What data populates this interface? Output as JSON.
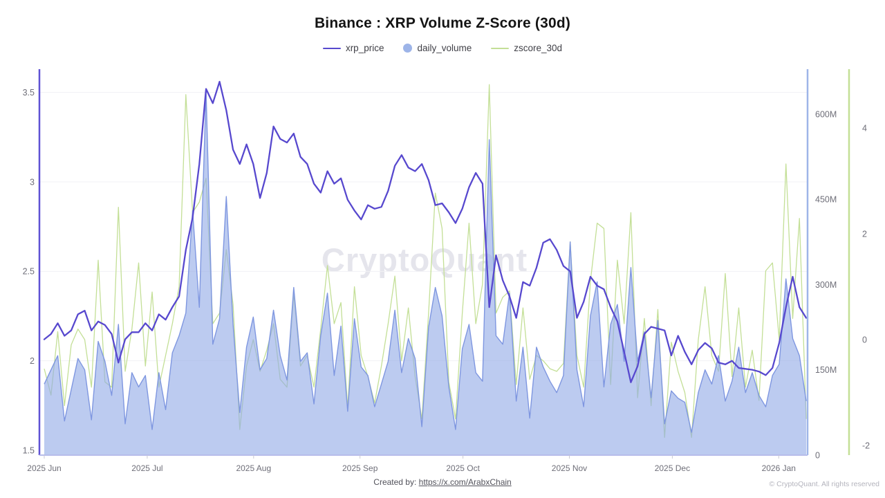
{
  "title": "Binance : XRP Volume Z-Score (30d)",
  "watermark": "CryptoQuant",
  "legend": {
    "items": [
      {
        "label": "xrp_price",
        "color": "#5748CE",
        "swatch": "line"
      },
      {
        "label": "daily_volume",
        "color": "#9DB4E8",
        "swatch": "circle"
      },
      {
        "label": "zscore_30d",
        "color": "#C3DF96",
        "swatch": "line"
      }
    ]
  },
  "footer": {
    "created_by_prefix": "Created by: ",
    "link_text": "https://x.com/ArabxChain",
    "copyright": "© CryptoQuant. All rights reserved"
  },
  "chart_data": {
    "type": "mixed-line-area",
    "title": "Binance : XRP Volume Z-Score (30d)",
    "x_axis": {
      "labels": [
        "2025 Jun",
        "2025 Jul",
        "2025 Aug",
        "2025 Sep",
        "2025 Oct",
        "2025 Nov",
        "2025 Dec",
        "2026 Jan"
      ],
      "month_day_offsets": [
        0,
        30,
        61,
        92,
        122,
        153,
        183,
        214
      ],
      "total_days": 222,
      "range_note": "daily data 2025-06-01 to 2026-01-09"
    },
    "y_axes": {
      "price": {
        "side": "left",
        "axis_color": "#5F51D4",
        "tick_labels": [
          "3.5",
          "3",
          "2.5",
          "2",
          "1.5"
        ],
        "tick_values": [
          3.5,
          3,
          2.5,
          2,
          1.5
        ],
        "min": 1.473,
        "max": 3.63
      },
      "volume": {
        "side": "right",
        "axis_color": "#9EB5E8",
        "tick_labels": [
          "600M",
          "450M",
          "300M",
          "150M",
          "0"
        ],
        "tick_values": [
          600,
          450,
          300,
          150,
          0
        ],
        "min": 0,
        "max": 679,
        "unit": "millions"
      },
      "zscore": {
        "side": "right-outer",
        "axis_color": "#C3DF96",
        "tick_labels": [
          "4",
          "2",
          "0",
          "-2"
        ],
        "tick_values": [
          4,
          2,
          0,
          -2
        ],
        "min": -2.183,
        "max": 5.111
      }
    },
    "grid": {
      "horizontal": true,
      "color": "#f1f1f4"
    },
    "series": [
      {
        "name": "xrp_price",
        "type": "line",
        "axis": "price",
        "color": "#5748CE",
        "width": 2.3,
        "values": [
          2.12,
          2.15,
          2.21,
          2.14,
          2.17,
          2.26,
          2.28,
          2.17,
          2.22,
          2.2,
          2.15,
          1.99,
          2.12,
          2.16,
          2.16,
          2.21,
          2.17,
          2.26,
          2.23,
          2.3,
          2.36,
          2.62,
          2.8,
          3.1,
          3.52,
          3.44,
          3.56,
          3.4,
          3.18,
          3.1,
          3.21,
          3.1,
          2.91,
          3.05,
          3.31,
          3.24,
          3.22,
          3.27,
          3.14,
          3.1,
          2.99,
          2.94,
          3.06,
          2.99,
          3.02,
          2.9,
          2.84,
          2.79,
          2.87,
          2.85,
          2.86,
          2.95,
          3.09,
          3.15,
          3.08,
          3.06,
          3.1,
          3.01,
          2.87,
          2.88,
          2.83,
          2.77,
          2.85,
          2.97,
          3.05,
          2.99,
          2.3,
          2.59,
          2.45,
          2.36,
          2.24,
          2.44,
          2.42,
          2.52,
          2.66,
          2.68,
          2.62,
          2.53,
          2.5,
          2.24,
          2.33,
          2.47,
          2.42,
          2.4,
          2.3,
          2.22,
          2.05,
          1.88,
          1.97,
          2.15,
          2.19,
          2.18,
          2.17,
          2.03,
          2.14,
          2.05,
          1.98,
          2.06,
          2.1,
          2.07,
          1.99,
          1.98,
          2.0,
          1.96,
          1.955,
          1.95,
          1.94,
          1.92,
          1.96,
          2.1,
          2.3,
          2.47,
          2.3,
          2.24
        ]
      },
      {
        "name": "daily_volume",
        "type": "area",
        "axis": "volume",
        "fill_color": "#93ABE6",
        "fill_opacity": 0.62,
        "stroke_color": "#7E96E0",
        "width": 1.4,
        "values": [
          125,
          150,
          175,
          60,
          115,
          170,
          150,
          62,
          200,
          165,
          105,
          230,
          55,
          145,
          120,
          140,
          45,
          145,
          80,
          180,
          210,
          250,
          430,
          260,
          640,
          195,
          240,
          455,
          230,
          75,
          190,
          243,
          150,
          170,
          255,
          175,
          132,
          295,
          165,
          180,
          90,
          210,
          285,
          140,
          227,
          77,
          240,
          155,
          140,
          85,
          125,
          165,
          255,
          145,
          205,
          170,
          50,
          225,
          295,
          245,
          120,
          45,
          187,
          230,
          145,
          130,
          555,
          210,
          195,
          285,
          95,
          190,
          65,
          190,
          155,
          130,
          110,
          140,
          375,
          150,
          85,
          245,
          305,
          120,
          230,
          265,
          165,
          330,
          165,
          217,
          101,
          237,
          55,
          113,
          100,
          93,
          40,
          110,
          150,
          125,
          175,
          95,
          130,
          190,
          110,
          145,
          105,
          85,
          140,
          160,
          310,
          205,
          175,
          95
        ]
      },
      {
        "name": "zscore_30d",
        "type": "line",
        "axis": "zscore",
        "color": "#C3DF96",
        "width": 1.3,
        "values": [
          -0.55,
          -1.05,
          0.15,
          -1.25,
          -0.1,
          0.2,
          0.0,
          -0.9,
          1.5,
          -0.8,
          -0.9,
          2.5,
          -0.6,
          0.2,
          1.45,
          -0.5,
          0.9,
          -0.9,
          -0.3,
          0.3,
          1.0,
          4.63,
          2.4,
          2.6,
          3.05,
          0.3,
          0.5,
          1.7,
          0.67,
          -1.7,
          -0.5,
          0.0,
          -0.6,
          -0.2,
          0.3,
          -0.75,
          -0.9,
          0.86,
          -0.5,
          -0.3,
          -0.9,
          0.2,
          1.4,
          0.3,
          0.7,
          -1.3,
          1.0,
          -0.3,
          -0.7,
          -1.2,
          -0.5,
          0.3,
          1.2,
          -0.4,
          0.6,
          -0.7,
          -1.5,
          0.5,
          2.77,
          2.1,
          -0.8,
          -1.5,
          0.5,
          2.2,
          0.3,
          1.05,
          4.82,
          0.5,
          0.8,
          0.92,
          -0.85,
          0.6,
          -0.75,
          -0.3,
          -0.4,
          -0.55,
          -0.6,
          -0.45,
          1.85,
          -0.3,
          -0.9,
          1.1,
          2.2,
          2.1,
          -0.85,
          1.5,
          0.3,
          2.4,
          -1.1,
          0.4,
          -1.25,
          0.57,
          -1.85,
          -0.05,
          -0.6,
          -1.0,
          -1.85,
          0.0,
          1.0,
          -0.3,
          -0.6,
          1.25,
          -0.7,
          0.6,
          -0.9,
          -0.2,
          -1.15,
          1.3,
          1.45,
          0.0,
          3.32,
          0.4,
          2.29,
          -1.5
        ]
      }
    ]
  }
}
